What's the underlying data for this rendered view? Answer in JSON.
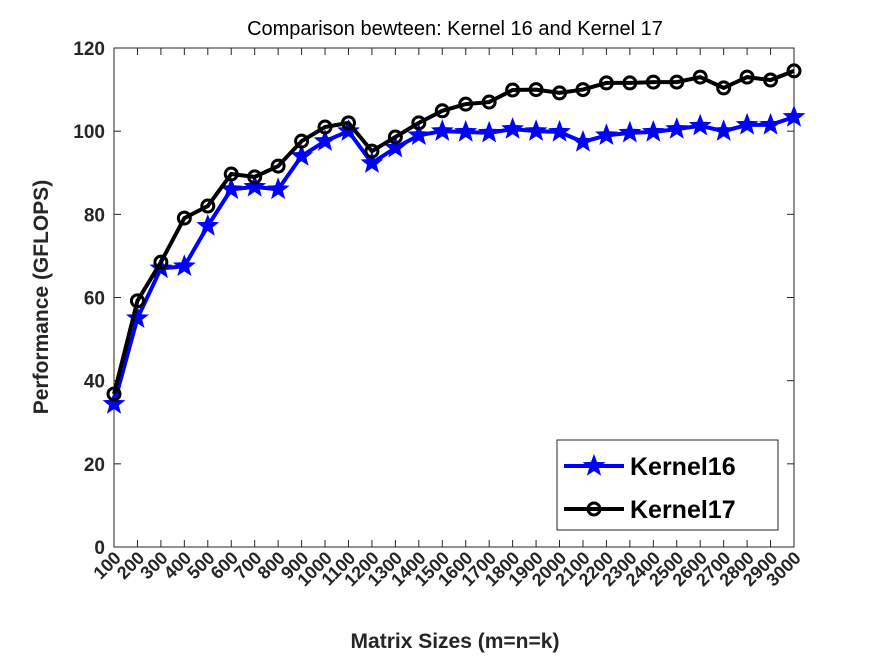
{
  "chart_data": {
    "type": "line",
    "title": "Comparison bewteen: Kernel 16 and Kernel 17",
    "xlabel": "Matrix Sizes (m=n=k)",
    "ylabel": "Performance (GFLOPS)",
    "x": [
      100,
      200,
      300,
      400,
      500,
      600,
      700,
      800,
      900,
      1000,
      1100,
      1200,
      1300,
      1400,
      1500,
      1600,
      1700,
      1800,
      1900,
      2000,
      2100,
      2200,
      2300,
      2400,
      2500,
      2600,
      2700,
      2800,
      2900,
      3000
    ],
    "xlim": [
      100,
      3000
    ],
    "ylim": [
      0,
      120
    ],
    "yticks": [
      0,
      20,
      40,
      60,
      80,
      100,
      120
    ],
    "grid": false,
    "legend_position": "bottom-right",
    "series": [
      {
        "name": "Kernel16",
        "color": "#0000ff",
        "marker": "star",
        "values": [
          34.4,
          55,
          67,
          67.5,
          77.2,
          86,
          86.6,
          86,
          94,
          97.6,
          100,
          92.3,
          96,
          99,
          100,
          99.8,
          99.6,
          100.5,
          100,
          99.8,
          97.4,
          99,
          99.6,
          99.8,
          100.5,
          101.3,
          100,
          101.5,
          101.5,
          103.4
        ]
      },
      {
        "name": "Kernel17",
        "color": "#000000",
        "marker": "circle",
        "values": [
          36.8,
          59.2,
          68.5,
          79.1,
          82,
          89.7,
          89,
          91.6,
          97.6,
          101,
          102,
          95.2,
          98.6,
          102,
          104.9,
          106.5,
          107,
          109.9,
          110,
          109.2,
          110,
          111.6,
          111.6,
          111.8,
          111.8,
          113,
          110.4,
          113,
          112.3,
          114.5
        ]
      }
    ]
  }
}
